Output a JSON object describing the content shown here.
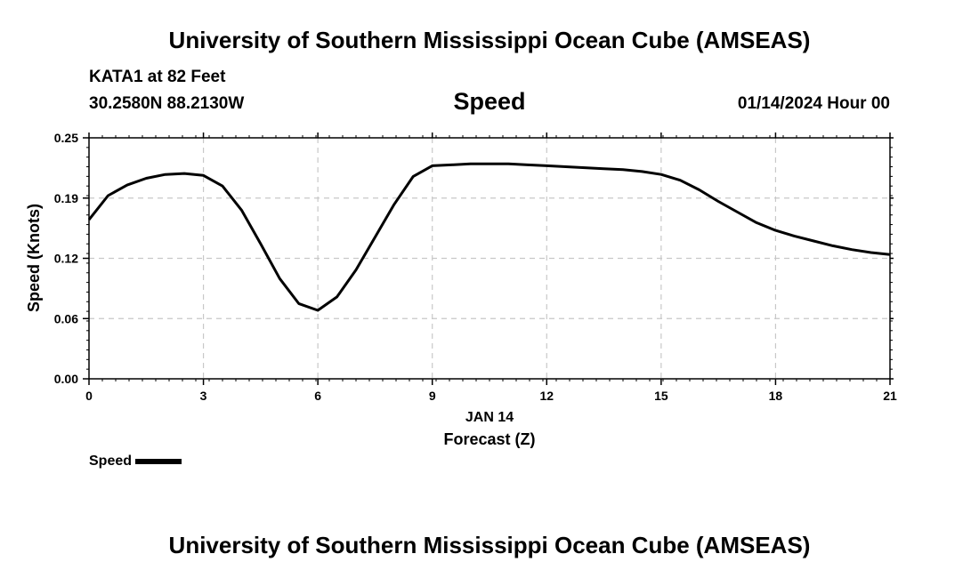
{
  "header": {
    "title": "University of Southern Mississippi Ocean Cube (AMSEAS)",
    "station": "KATA1 at 82 Feet",
    "coords": "30.2580N  88.2130W",
    "variable": "Speed",
    "datetime": "01/14/2024 Hour 00"
  },
  "footer": {
    "title": "University of Southern Mississippi Ocean Cube (AMSEAS)"
  },
  "legend": {
    "label": "Speed",
    "color": "#000000"
  },
  "chart_data": {
    "type": "line",
    "title": "Speed",
    "xlabel": "Forecast (Z)",
    "xlabel_date": "JAN 14",
    "ylabel": "Speed (Knots)",
    "xlim": [
      0,
      21
    ],
    "ylim": [
      0,
      0.25
    ],
    "x_ticks": [
      0,
      3,
      6,
      9,
      12,
      15,
      18,
      21
    ],
    "x_tick_labels": [
      "0",
      "3",
      "6",
      "9",
      "12",
      "15",
      "18",
      "21"
    ],
    "y_ticks": [
      0,
      0.0625,
      0.125,
      0.1875,
      0.25
    ],
    "y_tick_labels": [
      "0.00",
      "0.06",
      "0.12",
      "0.19",
      "0.25"
    ],
    "grid": true,
    "legend_position": "bottom-left",
    "series": [
      {
        "name": "Speed",
        "color": "#000000",
        "x": [
          0,
          0.5,
          1,
          1.5,
          2,
          2.5,
          3,
          3.5,
          4,
          4.5,
          5,
          5.5,
          6,
          6.5,
          7,
          7.5,
          8,
          8.5,
          9,
          9.5,
          10,
          10.5,
          11,
          11.5,
          12,
          12.5,
          13,
          13.5,
          14,
          14.5,
          15,
          15.5,
          16,
          16.5,
          17,
          17.5,
          18,
          18.5,
          19,
          19.5,
          20,
          20.5,
          21
        ],
        "values": [
          0.165,
          0.19,
          0.201,
          0.208,
          0.212,
          0.213,
          0.211,
          0.2,
          0.175,
          0.14,
          0.104,
          0.078,
          0.071,
          0.085,
          0.113,
          0.147,
          0.181,
          0.21,
          0.221,
          0.222,
          0.223,
          0.223,
          0.223,
          0.222,
          0.221,
          0.22,
          0.219,
          0.218,
          0.217,
          0.215,
          0.212,
          0.206,
          0.196,
          0.184,
          0.173,
          0.162,
          0.154,
          0.148,
          0.143,
          0.138,
          0.134,
          0.131,
          0.129
        ]
      }
    ]
  }
}
